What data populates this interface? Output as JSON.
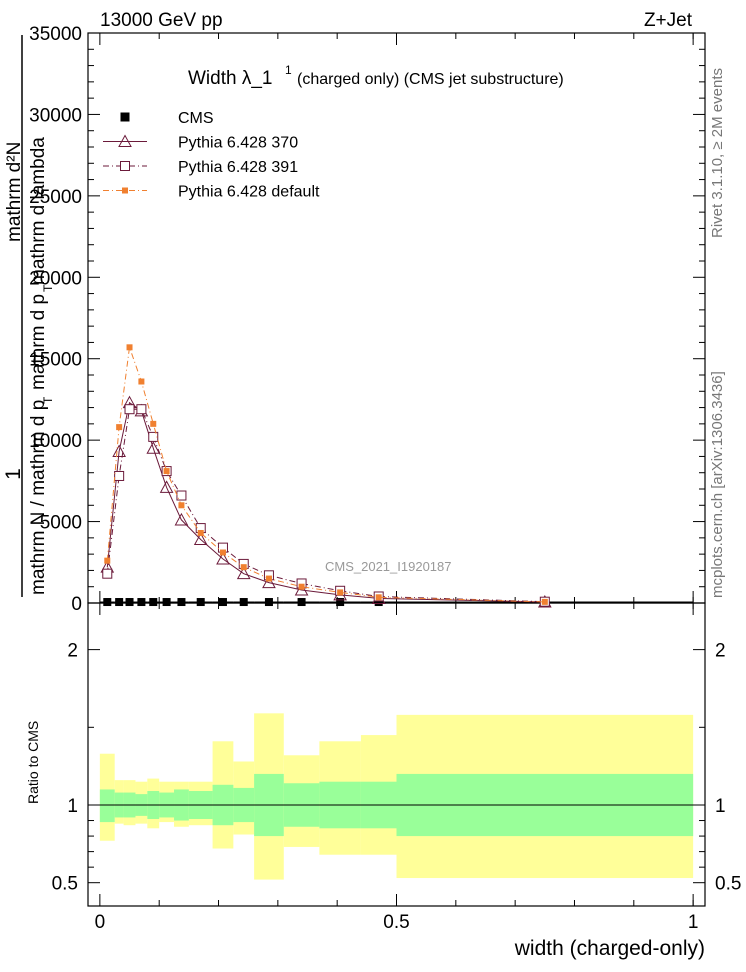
{
  "header": {
    "left": "13000 GeV pp",
    "right": "Z+Jet"
  },
  "side": {
    "rivet": "Rivet 3.1.10, ≥ 2M events",
    "mcplots": "mcplots.cern.ch [arXiv:1306.3436]"
  },
  "chart_data": {
    "type": "line",
    "title_main": "Width λ_1",
    "title_sup": "1",
    "title_rest": "(charged only) (CMS jet substructure)",
    "analysis_label": "CMS_2021_I1920187",
    "xlabel": "width (charged-only)",
    "ylabel_upper": "1",
    "ylabel_lower_a": "mathrm N / mathrm d p",
    "ylabel_lower_b": "T",
    "ylabel_lower_c": "mathrm d p",
    "ylabel_lower_d": "T",
    "ylabel_lower_e": "mathrm d²N",
    "ylabel_lower_f": "mathrm d lambda",
    "ratio_ylabel": "Ratio to CMS",
    "xlim": [
      -0.02,
      1.02
    ],
    "ylim": [
      0,
      35000
    ],
    "ratio_ylim": [
      0.35,
      2.3
    ],
    "x_ticks": [
      "0",
      "0.5",
      "1"
    ],
    "y_ticks": [
      "0",
      "5000",
      "10000",
      "15000",
      "20000",
      "25000",
      "30000",
      "35000"
    ],
    "ratio_ticks": [
      "0.5",
      "1",
      "2"
    ],
    "bin_edges": [
      0.0,
      0.025,
      0.04,
      0.06,
      0.08,
      0.1,
      0.125,
      0.15,
      0.19,
      0.225,
      0.26,
      0.31,
      0.37,
      0.44,
      0.5,
      1.0
    ],
    "bin_centers": [
      0.0125,
      0.0325,
      0.05,
      0.07,
      0.09,
      0.1125,
      0.1375,
      0.17,
      0.2075,
      0.2425,
      0.285,
      0.34,
      0.405,
      0.47,
      0.75
    ],
    "series": [
      {
        "name": "CMS",
        "color": "#000000",
        "marker": "filled-square",
        "values": [
          60,
          60,
          60,
          60,
          60,
          60,
          60,
          60,
          60,
          60,
          60,
          60,
          60,
          60,
          60
        ]
      },
      {
        "name": "Pythia 6.428 370",
        "color": "#6b1a3a",
        "marker": "open-triangle",
        "dash": "solid",
        "values": [
          2200,
          9300,
          12300,
          11800,
          9500,
          7100,
          5100,
          3900,
          2700,
          1800,
          1250,
          800,
          500,
          280,
          60
        ]
      },
      {
        "name": "Pythia 6.428 391",
        "color": "#6b1a3a",
        "marker": "open-square",
        "dash": "dashdot",
        "values": [
          1800,
          7800,
          11900,
          11900,
          10200,
          8100,
          6600,
          4600,
          3400,
          2400,
          1700,
          1200,
          750,
          400,
          80
        ]
      },
      {
        "name": "Pythia 6.428 default",
        "color": "#f08030",
        "marker": "filled-square",
        "dash": "dashdot",
        "values": [
          2600,
          10800,
          15700,
          13600,
          11000,
          8100,
          6000,
          4300,
          3100,
          2200,
          1500,
          1000,
          650,
          350,
          70
        ]
      }
    ],
    "ratio_bands": {
      "green_color": "#99ff99",
      "yellow_color": "#ffff99",
      "green_low": [
        0.89,
        0.92,
        0.92,
        0.93,
        0.91,
        0.92,
        0.9,
        0.91,
        0.87,
        0.89,
        0.8,
        0.86,
        0.85,
        0.85,
        0.8
      ],
      "green_high": [
        1.1,
        1.08,
        1.08,
        1.07,
        1.09,
        1.08,
        1.1,
        1.09,
        1.13,
        1.11,
        1.2,
        1.14,
        1.15,
        1.15,
        1.2
      ],
      "yellow_low": [
        0.77,
        0.88,
        0.87,
        0.88,
        0.85,
        0.89,
        0.86,
        0.87,
        0.72,
        0.81,
        0.52,
        0.73,
        0.68,
        0.68,
        0.53
      ],
      "yellow_high": [
        1.33,
        1.16,
        1.16,
        1.15,
        1.17,
        1.15,
        1.15,
        1.15,
        1.41,
        1.28,
        1.59,
        1.32,
        1.41,
        1.45,
        1.58
      ]
    }
  }
}
